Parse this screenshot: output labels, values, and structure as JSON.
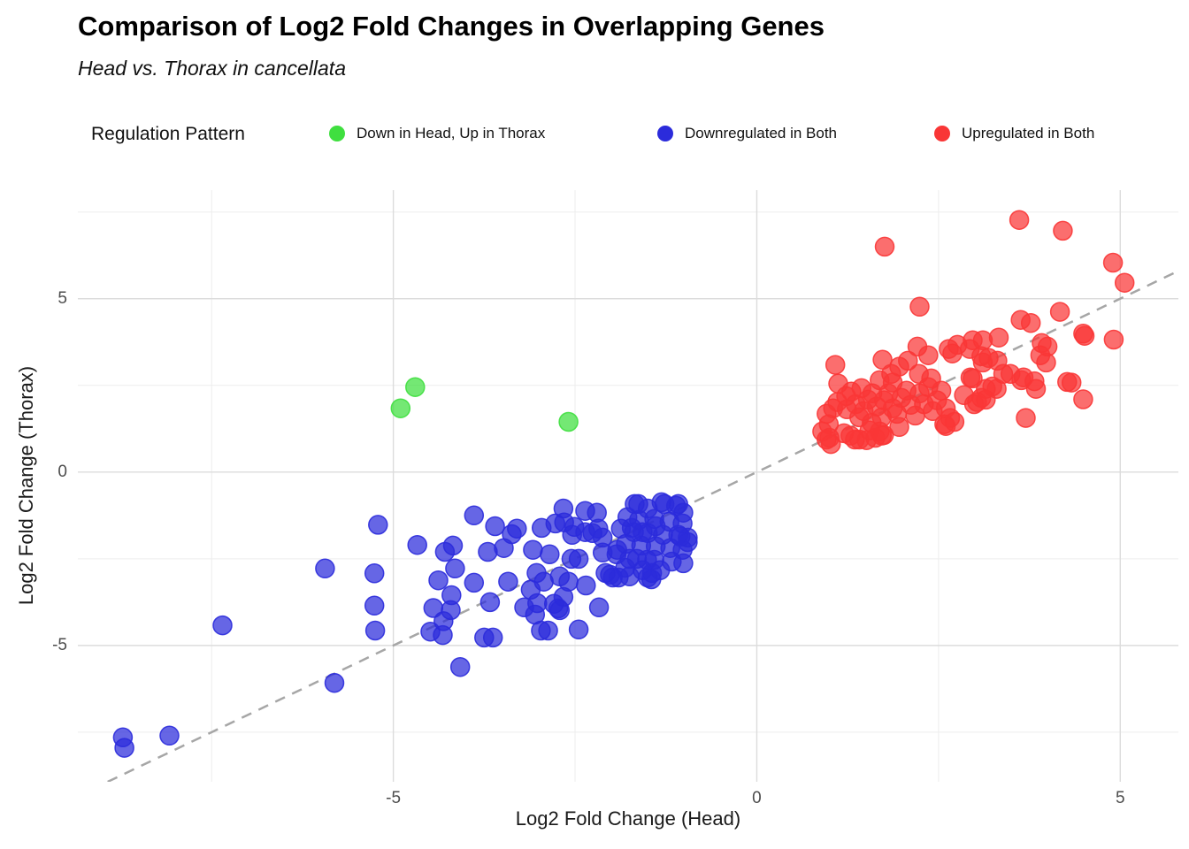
{
  "header": {
    "title": "Comparison of Log2 Fold Changes in Overlapping Genes",
    "subtitle": "Head vs. Thorax in cancellata"
  },
  "legend": {
    "title": "Regulation Pattern",
    "items": [
      {
        "label": "Down in Head, Up in Thorax",
        "color": "#3fdf3f"
      },
      {
        "label": "Downregulated in Both",
        "color": "#2b2bdb"
      },
      {
        "label": "Upregulated in Both",
        "color": "#f93636"
      }
    ]
  },
  "chart_data": {
    "type": "scatter",
    "title": "Comparison of Log2 Fold Changes in Overlapping Genes",
    "subtitle": "Head vs. Thorax in cancellata",
    "xlabel": "Log2 Fold Change (Head)",
    "ylabel": "Log2 Fold Change (Thorax)",
    "xlim": [
      -9.34,
      5.8
    ],
    "ylim": [
      -8.93,
      8.13
    ],
    "x_ticks": [
      -5,
      0,
      5
    ],
    "y_ticks": [
      -5,
      0,
      5
    ],
    "x_minor_ticks": [
      -7.5,
      -2.5,
      2.5
    ],
    "y_minor_ticks": [
      -7.5,
      -2.5,
      2.5,
      7.5
    ],
    "grid": true,
    "legend_position": "top",
    "reference_line": {
      "type": "identity y=x",
      "style": "dashed",
      "color": "#a6a6a6"
    },
    "series": [
      {
        "name": "Down in Head, Up in Thorax",
        "color": "#3fdf3f",
        "points": [
          [
            -4.7,
            2.45
          ],
          [
            -4.9,
            1.84
          ],
          [
            -2.59,
            1.45
          ]
        ]
      },
      {
        "name": "Downregulated in Both",
        "color": "#2b2bdb",
        "points": [
          [
            -8.72,
            -7.65
          ],
          [
            -8.7,
            -7.95
          ],
          [
            -8.08,
            -7.6
          ],
          [
            -7.35,
            -4.42
          ],
          [
            -5.81,
            -6.08
          ],
          [
            -4.08,
            -5.62
          ],
          [
            -5.94,
            -2.78
          ],
          [
            -5.26,
            -2.92
          ],
          [
            -5.26,
            -3.85
          ],
          [
            -5.25,
            -4.57
          ],
          [
            -5.21,
            -1.52
          ],
          [
            -4.67,
            -2.1
          ],
          [
            -4.38,
            -3.12
          ],
          [
            -4.45,
            -3.92
          ],
          [
            -4.21,
            -3.98
          ],
          [
            -4.31,
            -4.3
          ],
          [
            -4.49,
            -4.6
          ],
          [
            -4.32,
            -4.7
          ],
          [
            -4.2,
            -3.55
          ],
          [
            -4.29,
            -2.3
          ],
          [
            -4.18,
            -2.12
          ],
          [
            -4.15,
            -2.78
          ],
          [
            -3.89,
            -1.25
          ],
          [
            -3.6,
            -1.56
          ],
          [
            -3.37,
            -1.79
          ],
          [
            -3.7,
            -2.3
          ],
          [
            -3.48,
            -2.19
          ],
          [
            -3.89,
            -3.19
          ],
          [
            -3.67,
            -3.75
          ],
          [
            -3.75,
            -4.77
          ],
          [
            -3.63,
            -4.77
          ],
          [
            -3.42,
            -3.16
          ],
          [
            -3.2,
            -3.9
          ],
          [
            -3.05,
            -4.11
          ],
          [
            -3.11,
            -3.39
          ],
          [
            -3.02,
            -3.78
          ],
          [
            -3.3,
            -1.63
          ],
          [
            -3.08,
            -2.24
          ],
          [
            -3.03,
            -2.91
          ],
          [
            -2.96,
            -1.61
          ],
          [
            -2.97,
            -4.57
          ],
          [
            -2.93,
            -3.16
          ],
          [
            -2.87,
            -4.57
          ],
          [
            -2.85,
            -2.37
          ],
          [
            -2.79,
            -3.8
          ],
          [
            -2.77,
            -1.48
          ],
          [
            -2.73,
            -3.93
          ],
          [
            -2.71,
            -3.01
          ],
          [
            -2.71,
            -3.98
          ],
          [
            -2.66,
            -1.05
          ],
          [
            -2.66,
            -3.6
          ],
          [
            -2.65,
            -1.45
          ],
          [
            -2.59,
            -3.16
          ],
          [
            -2.55,
            -2.5
          ],
          [
            -2.54,
            -1.81
          ],
          [
            -2.51,
            -1.58
          ],
          [
            -2.45,
            -2.5
          ],
          [
            -2.45,
            -4.54
          ],
          [
            -2.36,
            -1.12
          ],
          [
            -2.36,
            -1.73
          ],
          [
            -2.35,
            -3.27
          ],
          [
            -2.26,
            -1.76
          ],
          [
            -2.2,
            -1.17
          ],
          [
            -2.18,
            -1.63
          ],
          [
            -2.17,
            -3.9
          ],
          [
            -2.12,
            -2.32
          ],
          [
            -2.12,
            -1.89
          ],
          [
            -2.08,
            -2.91
          ],
          [
            -2.02,
            -2.96
          ],
          [
            -1.98,
            -3.04
          ],
          [
            -1.92,
            -2.24
          ],
          [
            -1.9,
            -3.04
          ],
          [
            -1.75,
            -2.5
          ],
          [
            -1.51,
            -2.53
          ],
          [
            -1.44,
            -2.91
          ],
          [
            -1.93,
            -2.37
          ],
          [
            -1.87,
            -1.63
          ],
          [
            -1.81,
            -2.76
          ],
          [
            -1.8,
            -2.07
          ],
          [
            -1.78,
            -1.3
          ],
          [
            -1.75,
            -3.01
          ],
          [
            -1.72,
            -1.61
          ],
          [
            -1.69,
            -1.73
          ],
          [
            -1.68,
            -0.92
          ],
          [
            -1.65,
            -2.5
          ],
          [
            -1.63,
            -0.92
          ],
          [
            -1.62,
            -1.38
          ],
          [
            -1.59,
            -2.12
          ],
          [
            -1.57,
            -2.83
          ],
          [
            -1.57,
            -1.73
          ],
          [
            -1.5,
            -1.05
          ],
          [
            -1.5,
            -1.76
          ],
          [
            -1.5,
            -3.04
          ],
          [
            -1.45,
            -3.09
          ],
          [
            -1.41,
            -1.35
          ],
          [
            -1.41,
            -2.53
          ],
          [
            -1.39,
            -2.14
          ],
          [
            -1.39,
            -1.56
          ],
          [
            -1.33,
            -2.83
          ],
          [
            -1.31,
            -0.87
          ],
          [
            -1.29,
            -1.81
          ],
          [
            -1.27,
            -0.92
          ],
          [
            -1.2,
            -1.43
          ],
          [
            -1.19,
            -2.19
          ],
          [
            -1.17,
            -2.58
          ],
          [
            -1.11,
            -0.97
          ],
          [
            -1.08,
            -1.81
          ],
          [
            -1.08,
            -0.92
          ],
          [
            -1.05,
            -1.86
          ],
          [
            -1.02,
            -1.48
          ],
          [
            -1.02,
            -2.24
          ],
          [
            -1.01,
            -1.17
          ],
          [
            -1.01,
            -2.63
          ],
          [
            -0.95,
            -1.89
          ],
          [
            -0.95,
            -2.02
          ]
        ]
      },
      {
        "name": "Upregulated in Both",
        "color": "#f93636",
        "points": [
          [
            3.61,
            7.27
          ],
          [
            4.21,
            6.96
          ],
          [
            1.76,
            6.5
          ],
          [
            4.9,
            6.04
          ],
          [
            5.06,
            5.46
          ],
          [
            2.24,
            4.77
          ],
          [
            4.17,
            4.62
          ],
          [
            3.63,
            4.39
          ],
          [
            3.77,
            4.3
          ],
          [
            4.49,
            3.99
          ],
          [
            4.91,
            3.82
          ],
          [
            3.33,
            3.88
          ],
          [
            3.11,
            3.8
          ],
          [
            3.92,
            3.72
          ],
          [
            4.0,
            3.62
          ],
          [
            2.97,
            3.8
          ],
          [
            2.64,
            3.55
          ],
          [
            2.76,
            3.67
          ],
          [
            2.93,
            3.55
          ],
          [
            4.51,
            3.93
          ],
          [
            1.08,
            3.09
          ],
          [
            1.73,
            3.24
          ],
          [
            2.21,
            3.62
          ],
          [
            2.36,
            3.37
          ],
          [
            2.08,
            3.21
          ],
          [
            2.69,
            3.42
          ],
          [
            3.11,
            3.16
          ],
          [
            3.31,
            3.21
          ],
          [
            3.39,
            2.83
          ],
          [
            2.94,
            2.73
          ],
          [
            1.96,
            3.04
          ],
          [
            1.85,
            2.83
          ],
          [
            3.09,
            3.34
          ],
          [
            3.19,
            3.29
          ],
          [
            3.9,
            3.37
          ],
          [
            3.98,
            3.16
          ],
          [
            3.49,
            2.83
          ],
          [
            3.67,
            2.73
          ],
          [
            3.82,
            2.62
          ],
          [
            4.27,
            2.6
          ],
          [
            4.33,
            2.58
          ],
          [
            3.84,
            2.4
          ],
          [
            3.64,
            2.65
          ],
          [
            4.49,
            2.1
          ],
          [
            3.7,
            1.56
          ],
          [
            3.15,
            2.09
          ],
          [
            2.99,
            1.96
          ],
          [
            3.3,
            2.4
          ],
          [
            2.97,
            2.7
          ],
          [
            3.24,
            2.47
          ],
          [
            3.15,
            2.4
          ],
          [
            3.09,
            2.14
          ],
          [
            3.03,
            2.02
          ],
          [
            2.58,
            1.38
          ],
          [
            0.96,
            1.68
          ],
          [
            0.99,
            1.38
          ],
          [
            1.05,
            1.84
          ],
          [
            1.11,
            2.02
          ],
          [
            1.23,
            2.19
          ],
          [
            1.24,
            1.81
          ],
          [
            1.3,
            2.32
          ],
          [
            1.36,
            1.96
          ],
          [
            1.41,
            1.58
          ],
          [
            1.47,
            1.76
          ],
          [
            1.53,
            2.09
          ],
          [
            1.59,
            2.27
          ],
          [
            1.65,
            1.89
          ],
          [
            1.72,
            1.58
          ],
          [
            1.75,
            2.07
          ],
          [
            1.81,
            2.27
          ],
          [
            1.87,
            1.84
          ],
          [
            1.93,
            1.68
          ],
          [
            1.99,
            2.14
          ],
          [
            2.06,
            2.35
          ],
          [
            2.12,
            1.94
          ],
          [
            2.18,
            1.63
          ],
          [
            2.24,
            2.27
          ],
          [
            2.3,
            1.96
          ],
          [
            2.36,
            2.45
          ],
          [
            2.42,
            1.76
          ],
          [
            2.48,
            2.07
          ],
          [
            2.54,
            2.35
          ],
          [
            2.6,
            1.84
          ],
          [
            2.66,
            1.56
          ],
          [
            2.72,
            1.45
          ],
          [
            0.9,
            1.17
          ],
          [
            0.96,
            0.94
          ],
          [
            1.02,
            0.81
          ],
          [
            1.29,
            1.05
          ],
          [
            1.41,
            0.94
          ],
          [
            1.51,
            0.92
          ],
          [
            1.63,
            0.99
          ],
          [
            1.69,
            1.17
          ],
          [
            1.75,
            1.07
          ],
          [
            2.6,
            1.33
          ],
          [
            1.69,
            2.65
          ],
          [
            1.87,
            2.58
          ],
          [
            2.4,
            2.7
          ],
          [
            1.0,
            0.99
          ],
          [
            1.2,
            1.12
          ],
          [
            1.35,
            0.94
          ],
          [
            1.55,
            1.2
          ],
          [
            1.72,
            1.05
          ],
          [
            1.96,
            1.3
          ],
          [
            2.23,
            2.83
          ],
          [
            1.12,
            2.55
          ],
          [
            1.44,
            2.42
          ],
          [
            1.58,
            1.42
          ],
          [
            2.85,
            2.22
          ]
        ]
      }
    ]
  }
}
